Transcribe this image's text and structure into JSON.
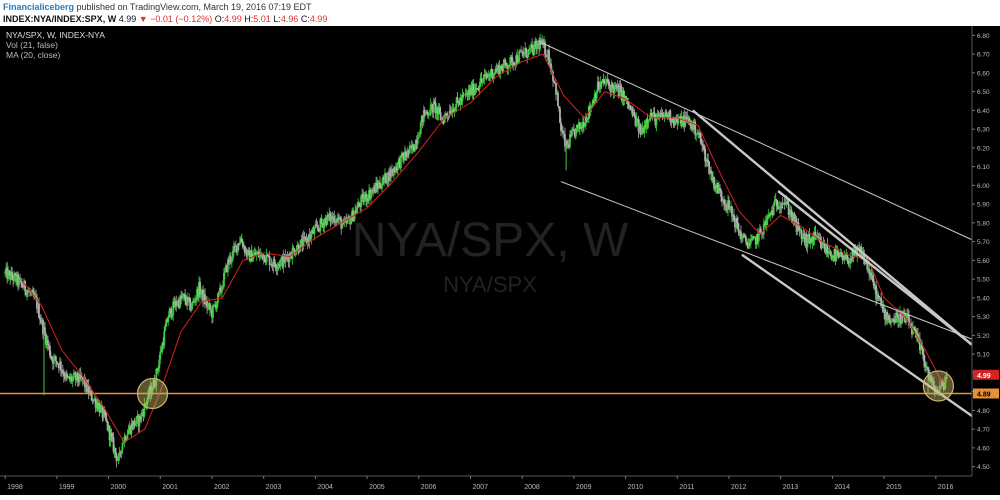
{
  "header": {
    "author": "Financialiceberg",
    "published_text": " published on TradingView.com, March 19, 2016 07:19 EDT",
    "symbol": "INDEX:NYA/INDEX:SPX, W",
    "last": "4.99",
    "change": "▼ −0.01 (−0.12%)",
    "ohlc_o_label": "O:",
    "ohlc_o": "4.99",
    "ohlc_h_label": "H:",
    "ohlc_h": "5.01",
    "ohlc_l_label": "L:",
    "ohlc_l": "4.96",
    "ohlc_c_label": "C:",
    "ohlc_c": "4.99"
  },
  "chart_data": {
    "type": "candlestick",
    "title": "NYA/SPX, W, INDEX-NYA",
    "indicators": [
      "Vol (21, false)",
      "MA (20, close)"
    ],
    "watermark_main": "NYA/SPX, W",
    "watermark_sub": "NYA/SPX",
    "x_ticks": [
      "1998",
      "1999",
      "2000",
      "2001",
      "2002",
      "2003",
      "2004",
      "2005",
      "2006",
      "2007",
      "2008",
      "2009",
      "2010",
      "2011",
      "2012",
      "2013",
      "2014",
      "2015",
      "2016"
    ],
    "y_ticks": [
      "6.80",
      "6.70",
      "6.60",
      "6.50",
      "6.40",
      "6.30",
      "6.20",
      "6.10",
      "6.00",
      "5.90",
      "5.80",
      "5.70",
      "5.60",
      "5.50",
      "5.40",
      "5.30",
      "5.20",
      "5.10",
      "5.00",
      "4.90",
      "4.80",
      "4.70",
      "4.60",
      "4.50"
    ],
    "ylim": [
      4.45,
      6.85
    ],
    "xlim": [
      1997.9,
      2016.7
    ],
    "price_path": [
      [
        1998.0,
        5.53
      ],
      [
        1998.2,
        5.5
      ],
      [
        1998.4,
        5.45
      ],
      [
        1998.6,
        5.38
      ],
      [
        1998.75,
        5.22
      ],
      [
        1998.9,
        5.08
      ],
      [
        1999.05,
        5.05
      ],
      [
        1999.2,
        4.96
      ],
      [
        1999.35,
        4.97
      ],
      [
        1999.5,
        4.96
      ],
      [
        1999.65,
        4.88
      ],
      [
        1999.8,
        4.83
      ],
      [
        1999.95,
        4.74
      ],
      [
        2000.1,
        4.6
      ],
      [
        2000.2,
        4.52
      ],
      [
        2000.25,
        4.62
      ],
      [
        2000.35,
        4.68
      ],
      [
        2000.45,
        4.72
      ],
      [
        2000.6,
        4.75
      ],
      [
        2000.75,
        4.86
      ],
      [
        2000.9,
        4.96
      ],
      [
        2001.0,
        5.1
      ],
      [
        2001.15,
        5.3
      ],
      [
        2001.3,
        5.37
      ],
      [
        2001.45,
        5.4
      ],
      [
        2001.6,
        5.35
      ],
      [
        2001.75,
        5.45
      ],
      [
        2001.9,
        5.36
      ],
      [
        2002.0,
        5.32
      ],
      [
        2002.15,
        5.42
      ],
      [
        2002.3,
        5.58
      ],
      [
        2002.45,
        5.66
      ],
      [
        2002.55,
        5.72
      ],
      [
        2002.7,
        5.62
      ],
      [
        2002.85,
        5.63
      ],
      [
        2003.0,
        5.63
      ],
      [
        2003.2,
        5.58
      ],
      [
        2003.4,
        5.6
      ],
      [
        2003.6,
        5.66
      ],
      [
        2003.8,
        5.7
      ],
      [
        2004.0,
        5.76
      ],
      [
        2004.2,
        5.82
      ],
      [
        2004.4,
        5.83
      ],
      [
        2004.55,
        5.78
      ],
      [
        2004.7,
        5.83
      ],
      [
        2004.9,
        5.92
      ],
      [
        2005.1,
        5.97
      ],
      [
        2005.3,
        6.02
      ],
      [
        2005.5,
        6.08
      ],
      [
        2005.7,
        6.15
      ],
      [
        2005.9,
        6.2
      ],
      [
        2006.1,
        6.38
      ],
      [
        2006.3,
        6.42
      ],
      [
        2006.45,
        6.35
      ],
      [
        2006.6,
        6.4
      ],
      [
        2006.8,
        6.45
      ],
      [
        2007.0,
        6.5
      ],
      [
        2007.2,
        6.55
      ],
      [
        2007.4,
        6.6
      ],
      [
        2007.6,
        6.63
      ],
      [
        2007.8,
        6.66
      ],
      [
        2008.0,
        6.7
      ],
      [
        2008.2,
        6.72
      ],
      [
        2008.35,
        6.76
      ],
      [
        2008.5,
        6.7
      ],
      [
        2008.65,
        6.52
      ],
      [
        2008.75,
        6.3
      ],
      [
        2008.85,
        6.2
      ],
      [
        2009.0,
        6.28
      ],
      [
        2009.15,
        6.32
      ],
      [
        2009.3,
        6.4
      ],
      [
        2009.45,
        6.52
      ],
      [
        2009.6,
        6.55
      ],
      [
        2009.75,
        6.52
      ],
      [
        2009.9,
        6.5
      ],
      [
        2010.1,
        6.4
      ],
      [
        2010.3,
        6.28
      ],
      [
        2010.45,
        6.38
      ],
      [
        2010.6,
        6.35
      ],
      [
        2010.8,
        6.38
      ],
      [
        2011.0,
        6.34
      ],
      [
        2011.2,
        6.35
      ],
      [
        2011.4,
        6.28
      ],
      [
        2011.55,
        6.15
      ],
      [
        2011.7,
        6.02
      ],
      [
        2011.85,
        5.95
      ],
      [
        2012.0,
        5.88
      ],
      [
        2012.1,
        5.82
      ],
      [
        2012.2,
        5.75
      ],
      [
        2012.3,
        5.7
      ],
      [
        2012.45,
        5.69
      ],
      [
        2012.6,
        5.74
      ],
      [
        2012.75,
        5.82
      ],
      [
        2012.9,
        5.9
      ],
      [
        2013.05,
        5.92
      ],
      [
        2013.2,
        5.85
      ],
      [
        2013.35,
        5.75
      ],
      [
        2013.5,
        5.7
      ],
      [
        2013.65,
        5.72
      ],
      [
        2013.8,
        5.68
      ],
      [
        2013.95,
        5.64
      ],
      [
        2014.1,
        5.62
      ],
      [
        2014.25,
        5.6
      ],
      [
        2014.4,
        5.62
      ],
      [
        2014.55,
        5.65
      ],
      [
        2014.7,
        5.55
      ],
      [
        2014.85,
        5.42
      ],
      [
        2015.0,
        5.32
      ],
      [
        2015.15,
        5.28
      ],
      [
        2015.3,
        5.3
      ],
      [
        2015.45,
        5.28
      ],
      [
        2015.6,
        5.2
      ],
      [
        2015.75,
        5.1
      ],
      [
        2015.85,
        5.0
      ],
      [
        2015.95,
        4.92
      ],
      [
        2016.05,
        4.9
      ],
      [
        2016.15,
        4.94
      ],
      [
        2016.22,
        4.99
      ]
    ],
    "ma_path": [
      [
        1998.3,
        5.5
      ],
      [
        1998.7,
        5.36
      ],
      [
        1999.1,
        5.12
      ],
      [
        1999.5,
        4.98
      ],
      [
        1999.9,
        4.82
      ],
      [
        2000.3,
        4.63
      ],
      [
        2000.7,
        4.7
      ],
      [
        2001.0,
        4.9
      ],
      [
        2001.4,
        5.22
      ],
      [
        2001.8,
        5.38
      ],
      [
        2002.2,
        5.4
      ],
      [
        2002.6,
        5.6
      ],
      [
        2003.0,
        5.64
      ],
      [
        2003.5,
        5.62
      ],
      [
        2004.0,
        5.72
      ],
      [
        2004.5,
        5.8
      ],
      [
        2005.0,
        5.88
      ],
      [
        2005.5,
        6.02
      ],
      [
        2006.0,
        6.18
      ],
      [
        2006.5,
        6.36
      ],
      [
        2007.0,
        6.44
      ],
      [
        2007.5,
        6.58
      ],
      [
        2008.0,
        6.66
      ],
      [
        2008.4,
        6.7
      ],
      [
        2008.8,
        6.48
      ],
      [
        2009.2,
        6.36
      ],
      [
        2009.6,
        6.5
      ],
      [
        2010.0,
        6.46
      ],
      [
        2010.5,
        6.36
      ],
      [
        2011.0,
        6.36
      ],
      [
        2011.4,
        6.32
      ],
      [
        2011.8,
        6.08
      ],
      [
        2012.2,
        5.86
      ],
      [
        2012.6,
        5.74
      ],
      [
        2013.0,
        5.84
      ],
      [
        2013.4,
        5.78
      ],
      [
        2013.8,
        5.7
      ],
      [
        2014.3,
        5.63
      ],
      [
        2014.7,
        5.6
      ],
      [
        2015.0,
        5.4
      ],
      [
        2015.4,
        5.3
      ],
      [
        2015.8,
        5.12
      ],
      [
        2016.1,
        4.96
      ],
      [
        2016.22,
        4.95
      ]
    ],
    "support_level": 4.89,
    "last_price_label": "4.99",
    "support_label": "4.89",
    "channel_lines": [
      {
        "style": "thin",
        "points": [
          [
            2008.3,
            6.77
          ],
          [
            2016.7,
            5.71
          ]
        ]
      },
      {
        "style": "thin",
        "points": [
          [
            2008.75,
            6.02
          ],
          [
            2016.7,
            5.18
          ]
        ]
      },
      {
        "style": "thick",
        "points": [
          [
            2011.3,
            6.4
          ],
          [
            2016.7,
            5.15
          ]
        ]
      },
      {
        "style": "thick",
        "points": [
          [
            2012.25,
            5.63
          ],
          [
            2016.7,
            4.77
          ]
        ]
      },
      {
        "style": "thick",
        "points": [
          [
            2012.95,
            5.97
          ],
          [
            2016.7,
            5.15
          ]
        ]
      }
    ],
    "highlight_circles": [
      [
        2000.85,
        4.89
      ],
      [
        2016.05,
        4.93
      ]
    ],
    "colors": {
      "background": "#000000",
      "up_candle": "#3ecb3e",
      "down_candle": "#b0b0b0",
      "moving_average": "#d62222",
      "support_line": "#e8913a",
      "channel": "#c8c8c8",
      "circle": "#c9b96a",
      "last_price_box": "#d62222"
    },
    "grid": false
  }
}
